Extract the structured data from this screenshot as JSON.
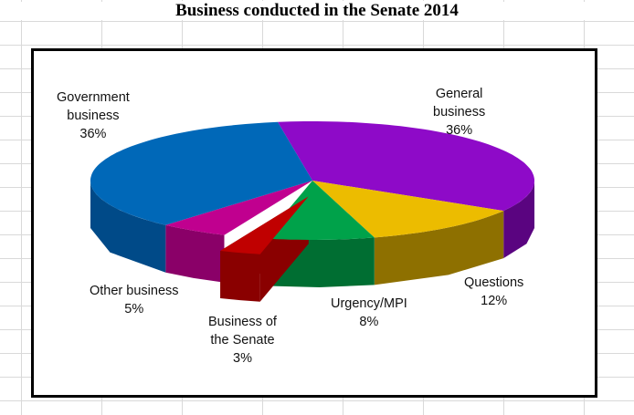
{
  "chart_data": {
    "type": "pie",
    "variant": "3d-exploded",
    "title": "Business conducted in the Senate 2014",
    "categories": [
      "General business",
      "Questions",
      "Urgency/MPI",
      "Business of the Senate",
      "Other business",
      "Government business"
    ],
    "values": [
      36,
      12,
      8,
      3,
      5,
      36
    ],
    "label_lines": [
      [
        "General",
        "business"
      ],
      [
        "Questions"
      ],
      [
        "Urgency/MPI"
      ],
      [
        "Business of",
        "the Senate"
      ],
      [
        "Other business"
      ],
      [
        "Government",
        "business"
      ]
    ],
    "percent_labels": [
      "36%",
      "12%",
      "8%",
      "3%",
      "5%",
      "36%"
    ],
    "colors": [
      "#8e0ac8",
      "#ecbc00",
      "#00a24a",
      "#c00000",
      "#c0008f",
      "#0068b8"
    ],
    "side_colors": [
      "#5a0480",
      "#8e7000",
      "#006e32",
      "#8a0000",
      "#8a0068",
      "#004a88"
    ],
    "exploded": [
      false,
      false,
      false,
      true,
      false,
      false
    ],
    "legend": "none"
  }
}
